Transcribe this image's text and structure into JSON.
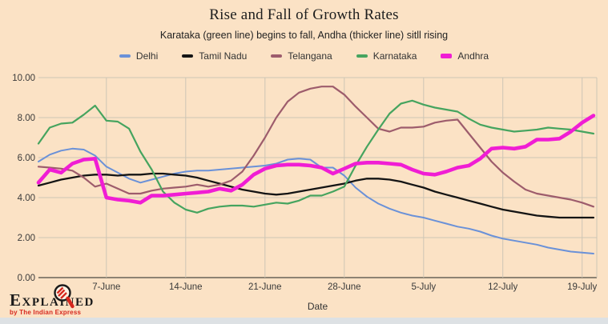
{
  "page": {
    "background_color": "#fbe2c5",
    "footer_strip_color": "#dde1e4",
    "gridline_color": "#cdc5b5",
    "zero_axis_color": "#8d8373"
  },
  "chart_data": {
    "type": "line",
    "title": "Rise and Fall of Growth Rates",
    "subtitle": "Karataka (green line) begins to fall, Andha (thicker line) sitll rising",
    "xlabel": "Date",
    "ylim": [
      0,
      10
    ],
    "y_tick_step": 2,
    "y_ticks": [
      "0.00",
      "2.00",
      "4.00",
      "6.00",
      "8.00",
      "10.00"
    ],
    "grid": true,
    "legend_position": "top",
    "x_dates": [
      "1-Jun",
      "2-Jun",
      "3-Jun",
      "4-Jun",
      "5-Jun",
      "6-Jun",
      "7-Jun",
      "8-Jun",
      "9-Jun",
      "10-Jun",
      "11-Jun",
      "12-Jun",
      "13-Jun",
      "14-Jun",
      "15-Jun",
      "16-Jun",
      "17-Jun",
      "18-Jun",
      "19-Jun",
      "20-Jun",
      "21-Jun",
      "22-Jun",
      "23-Jun",
      "24-Jun",
      "25-Jun",
      "26-Jun",
      "27-Jun",
      "28-Jun",
      "29-Jun",
      "30-Jun",
      "1-Jul",
      "2-Jul",
      "3-Jul",
      "4-Jul",
      "5-Jul",
      "6-Jul",
      "7-Jul",
      "8-Jul",
      "9-Jul",
      "10-Jul",
      "11-Jul",
      "12-Jul",
      "13-Jul",
      "14-Jul",
      "15-Jul",
      "16-Jul",
      "17-Jul",
      "18-Jul",
      "19-Jul",
      "20-Jul"
    ],
    "x_tick_labels": [
      "7-June",
      "14-June",
      "21-June",
      "28-June",
      "5-July",
      "12-July",
      "19-July"
    ],
    "x_tick_indices": [
      6,
      13,
      20,
      27,
      34,
      41,
      48
    ],
    "series": [
      {
        "name": "Delhi",
        "color": "#6a91d8",
        "width": 2,
        "values": [
          5.8,
          6.15,
          6.35,
          6.45,
          6.4,
          6.1,
          5.55,
          5.25,
          4.95,
          4.75,
          4.9,
          5.05,
          5.2,
          5.3,
          5.35,
          5.35,
          5.4,
          5.45,
          5.5,
          5.55,
          5.6,
          5.7,
          5.9,
          5.95,
          5.9,
          5.5,
          5.5,
          5.1,
          4.5,
          4.05,
          3.7,
          3.45,
          3.25,
          3.1,
          3.0,
          2.85,
          2.7,
          2.55,
          2.45,
          2.3,
          2.1,
          1.95,
          1.85,
          1.75,
          1.65,
          1.5,
          1.4,
          1.3,
          1.25,
          1.2
        ]
      },
      {
        "name": "Tamil Nadu",
        "color": "#141414",
        "width": 2.3,
        "values": [
          4.6,
          4.75,
          4.9,
          5.0,
          5.1,
          5.15,
          5.15,
          5.1,
          5.15,
          5.15,
          5.2,
          5.2,
          5.15,
          5.1,
          5.0,
          4.85,
          4.7,
          4.55,
          4.4,
          4.3,
          4.2,
          4.15,
          4.2,
          4.3,
          4.4,
          4.5,
          4.6,
          4.7,
          4.85,
          4.95,
          4.95,
          4.9,
          4.8,
          4.65,
          4.5,
          4.3,
          4.15,
          4.0,
          3.85,
          3.7,
          3.55,
          3.4,
          3.3,
          3.2,
          3.1,
          3.05,
          3.0,
          3.0,
          3.0,
          3.0
        ]
      },
      {
        "name": "Telangana",
        "color": "#9d5c6c",
        "width": 2.2,
        "values": [
          5.55,
          5.5,
          5.45,
          5.35,
          5.0,
          4.55,
          4.7,
          4.45,
          4.2,
          4.2,
          4.35,
          4.45,
          4.5,
          4.55,
          4.65,
          4.55,
          4.65,
          4.85,
          5.3,
          6.1,
          7.0,
          8.0,
          8.8,
          9.25,
          9.45,
          9.55,
          9.55,
          9.15,
          8.55,
          8.0,
          7.45,
          7.3,
          7.5,
          7.5,
          7.55,
          7.75,
          7.85,
          7.9,
          7.2,
          6.5,
          5.8,
          5.25,
          4.8,
          4.4,
          4.2,
          4.1,
          4.0,
          3.9,
          3.75,
          3.55
        ]
      },
      {
        "name": "Karnataka",
        "color": "#46a45f",
        "width": 2.2,
        "values": [
          6.7,
          7.5,
          7.7,
          7.75,
          8.15,
          8.6,
          7.85,
          7.8,
          7.45,
          6.3,
          5.4,
          4.3,
          3.75,
          3.4,
          3.25,
          3.45,
          3.55,
          3.6,
          3.6,
          3.55,
          3.65,
          3.75,
          3.7,
          3.85,
          4.1,
          4.1,
          4.3,
          4.55,
          5.6,
          6.55,
          7.4,
          8.2,
          8.7,
          8.85,
          8.65,
          8.5,
          8.4,
          8.3,
          7.95,
          7.65,
          7.5,
          7.4,
          7.3,
          7.35,
          7.4,
          7.5,
          7.45,
          7.4,
          7.3,
          7.2
        ]
      },
      {
        "name": "Andhra",
        "color": "#f01dd4",
        "width": 4.6,
        "values": [
          4.75,
          5.4,
          5.25,
          5.7,
          5.9,
          5.95,
          4.0,
          3.9,
          3.85,
          3.75,
          4.1,
          4.1,
          4.15,
          4.2,
          4.25,
          4.3,
          4.45,
          4.35,
          4.65,
          5.15,
          5.45,
          5.6,
          5.65,
          5.65,
          5.6,
          5.5,
          5.2,
          5.45,
          5.7,
          5.75,
          5.75,
          5.7,
          5.65,
          5.4,
          5.2,
          5.15,
          5.3,
          5.5,
          5.6,
          5.95,
          6.45,
          6.5,
          6.45,
          6.55,
          6.9,
          6.9,
          6.95,
          7.3,
          7.75,
          8.1
        ]
      }
    ]
  },
  "branding": {
    "logo_text": "EXPLAINED",
    "logo_tagline": "by The Indian Express",
    "tagline_color": "#d6281e"
  }
}
